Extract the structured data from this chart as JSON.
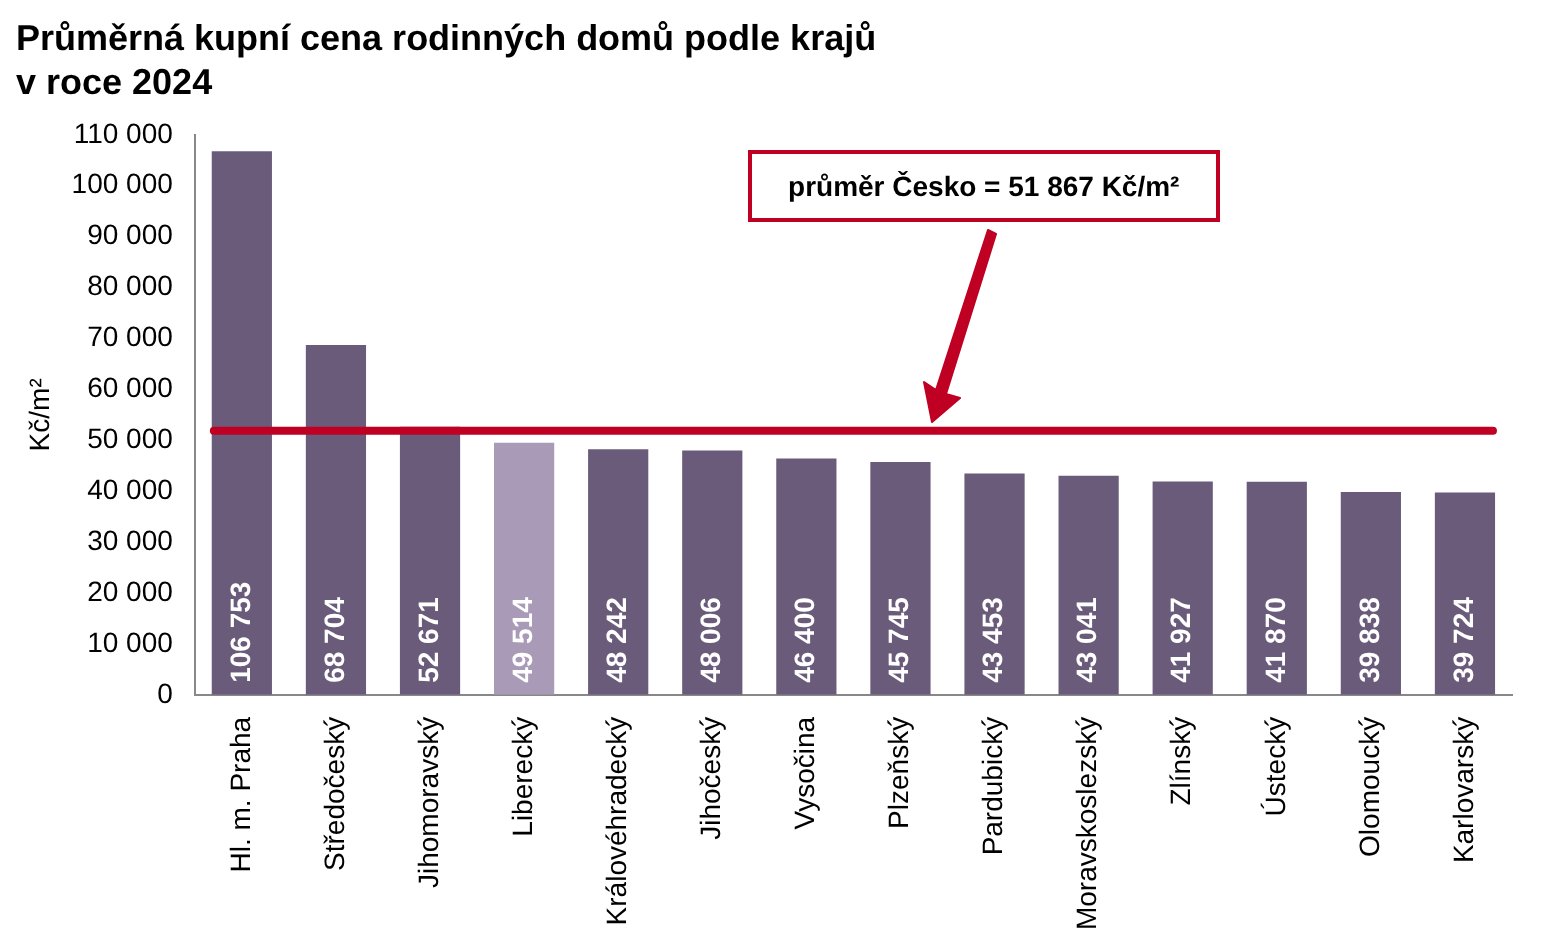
{
  "chart_data": {
    "type": "bar",
    "title": "Průměrná kupní cena rodinných domů podle krajů\nv roce 2024",
    "ylabel": "Kč/m²",
    "categories": [
      "Hl. m. Praha",
      "Středočeský",
      "Jihomoravský",
      "Liberecký",
      "Královéhradecký",
      "Jihočeský",
      "Vysočina",
      "Plzeňský",
      "Pardubický",
      "Moravskoslezský",
      "Zlínský",
      "Ústecký",
      "Olomoucký",
      "Karlovarský"
    ],
    "values": [
      106753,
      68704,
      52671,
      49514,
      48242,
      48006,
      46400,
      45745,
      43453,
      43041,
      41927,
      41870,
      39838,
      39724
    ],
    "value_labels": [
      "106 753",
      "68 704",
      "52 671",
      "49 514",
      "48 242",
      "48 006",
      "46 400",
      "45 745",
      "43 453",
      "43 041",
      "41 927",
      "41 870",
      "39 838",
      "39 724"
    ],
    "colors": [
      "#6a5b7b",
      "#6a5b7b",
      "#6a5b7b",
      "#a99bb8",
      "#6a5b7b",
      "#6a5b7b",
      "#6a5b7b",
      "#6a5b7b",
      "#6a5b7b",
      "#6a5b7b",
      "#6a5b7b",
      "#6a5b7b",
      "#6a5b7b",
      "#6a5b7b"
    ],
    "ylim": [
      0,
      110000
    ],
    "yticks": [
      {
        "value": 0,
        "label": "0"
      },
      {
        "value": 10000,
        "label": "10 000"
      },
      {
        "value": 20000,
        "label": "20 000"
      },
      {
        "value": 30000,
        "label": "30 000"
      },
      {
        "value": 40000,
        "label": "40 000"
      },
      {
        "value": 50000,
        "label": "50 000"
      },
      {
        "value": 60000,
        "label": "60 000"
      },
      {
        "value": 70000,
        "label": "70 000"
      },
      {
        "value": 80000,
        "label": "80 000"
      },
      {
        "value": 90000,
        "label": "90 000"
      },
      {
        "value": 100000,
        "label": "100 000"
      },
      {
        "value": 110000,
        "label": "110 000"
      }
    ],
    "ref_lines": [
      {
        "axis": "y",
        "value": 51867,
        "color": "#c00023"
      }
    ],
    "annotations": [
      "průměr Česko = 51 867 Kč/m²"
    ],
    "grid": false,
    "legend": false
  }
}
